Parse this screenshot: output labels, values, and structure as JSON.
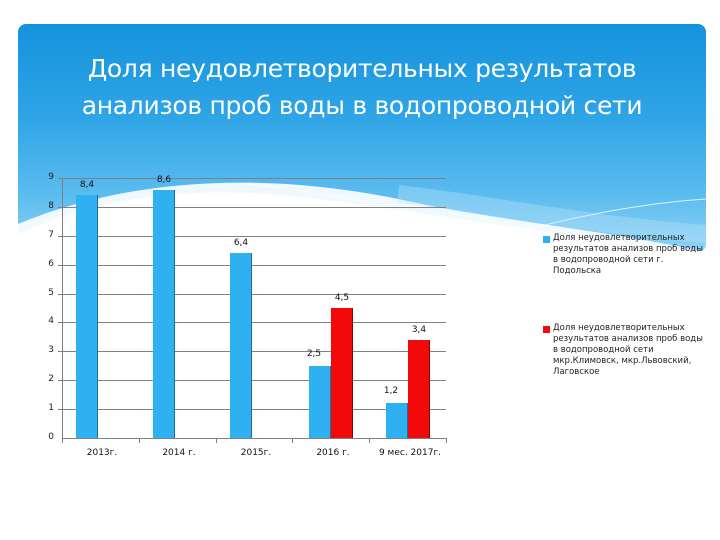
{
  "slide": {
    "title_line1": "Доля неудовлетворительных результатов",
    "title_line2": "анализов проб воды в водопроводной сети",
    "header_colors": {
      "top": "#1493dc",
      "bottom": "#8fd3f5"
    }
  },
  "chart_data": {
    "type": "bar",
    "title": "Доля неудовлетворительных результатов анализов проб воды в водопроводной сети",
    "xlabel": "",
    "ylabel": "",
    "ylim": [
      0,
      9
    ],
    "yticks": [
      "0",
      "1",
      "2",
      "3",
      "4",
      "5",
      "6",
      "7",
      "8",
      "9"
    ],
    "grid": true,
    "legend_position": "right",
    "categories": [
      "2013г.",
      "2014 г.",
      "2015г.",
      "2016 г.",
      "9 мес. 2017г."
    ],
    "series": [
      {
        "name": "Доля неудовлетворительных результатов анализов проб воды в водопроводной сети г. Подольска",
        "color": "#2fb0f0",
        "values": [
          8.4,
          8.6,
          6.4,
          2.5,
          1.2
        ],
        "labels": [
          "8,4",
          "8,6",
          "6,4",
          "2,5",
          "1,2"
        ]
      },
      {
        "name": "Доля неудовлетворительных результатов анализов проб воды в водопроводной сети мкр.Климовск, мкр.Львовский, Лаговское",
        "color": "#f20a0a",
        "values": [
          null,
          null,
          null,
          4.5,
          3.4
        ],
        "labels": [
          "",
          "",
          "",
          "4,5",
          "3,4"
        ]
      }
    ]
  },
  "legend": {
    "item1": "Доля неудовлетворительных результатов анализов проб воды в водопроводной сети г. Подольска",
    "item2": "Доля неудовлетворительных результатов анализов проб воды в водопроводной сети мкр.Климовск, мкр.Львовский, Лаговское"
  }
}
